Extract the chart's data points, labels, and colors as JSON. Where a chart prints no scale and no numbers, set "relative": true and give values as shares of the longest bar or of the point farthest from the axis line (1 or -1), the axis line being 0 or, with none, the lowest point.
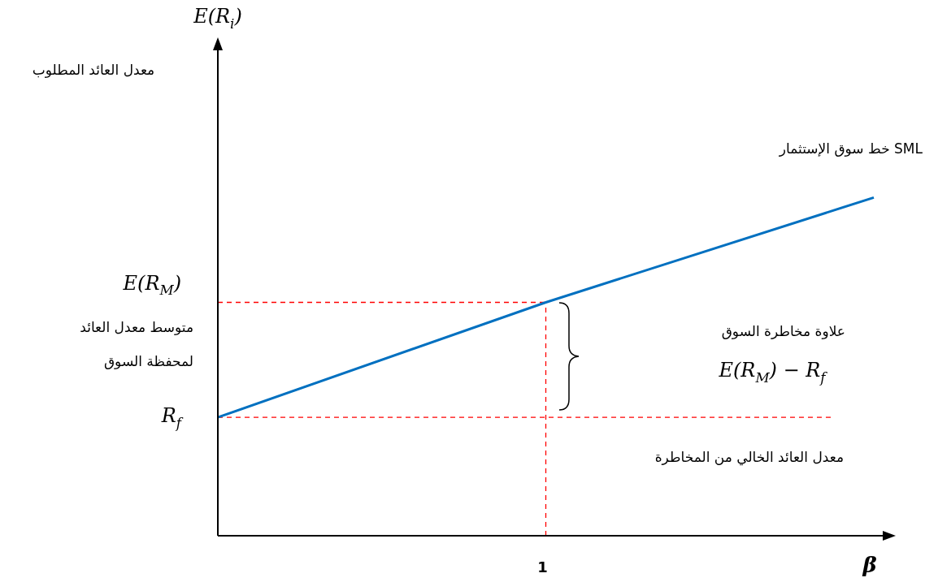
{
  "chart_data": {
    "type": "line",
    "relative": true,
    "xlabel": "β",
    "categories": [
      null,
      null,
      null
    ],
    "series": [
      {
        "color": "#0070c0",
        "values": [
          0.35,
          0.69,
          1
        ]
      }
    ],
    "ref_lines": [
      {
        "axis": "y",
        "value": 0.69,
        "label": "E(R$_{M}$)",
        "color": "#ff0000",
        "line_style": "dashed"
      },
      {
        "axis": "y",
        "value": 0.35,
        "label": "R$_{f}$",
        "color": "#ff0000",
        "line_style": "dashed"
      },
      {
        "axis": "x",
        "value": "1",
        "color": "#ff0000",
        "line_style": "dashed"
      }
    ],
    "annotations": [
      "معدل العائد المطلوب",
      "خط سوق الإستثمار SML",
      "متوسط معدل العائد",
      "لمحفظة السوق",
      "علاوة مخاطرة السوق",
      "E(R$_{M}$) − R$_{f}$",
      "معدل العائد الخالي من المخاطرة",
      "E(R$_{i}$)"
    ],
    "legend": false,
    "marker": "none",
    "line_style": "solid"
  }
}
